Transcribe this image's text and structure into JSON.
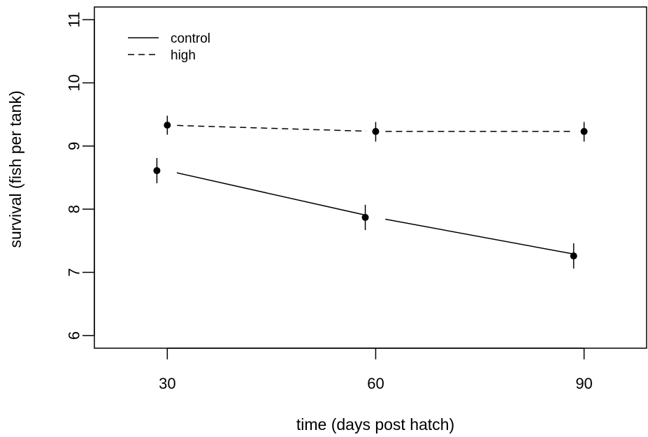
{
  "chart_data": {
    "type": "line",
    "title": "",
    "xlabel": "time (days post hatch)",
    "ylabel": "survival (fish per tank)",
    "xlim": [
      19.5,
      99
    ],
    "ylim": [
      5.8,
      11.2
    ],
    "x_ticks": [
      30,
      60,
      90
    ],
    "x_tick_labels": [
      "30",
      "60",
      "90"
    ],
    "y_ticks": [
      6,
      7,
      8,
      9,
      10,
      11
    ],
    "y_tick_labels": [
      "6",
      "7",
      "8",
      "9",
      "10",
      "11"
    ],
    "grid": false,
    "legend_position": "top-left",
    "series": [
      {
        "name": "control",
        "line_style": "solid",
        "x": [
          30,
          60,
          90
        ],
        "point_x": [
          28.5,
          58.5,
          88.5
        ],
        "y": [
          8.61,
          7.87,
          7.26
        ],
        "error_low": [
          8.41,
          7.67,
          7.06
        ],
        "error_high": [
          8.81,
          8.07,
          7.46
        ]
      },
      {
        "name": "high",
        "line_style": "dashed",
        "x": [
          30,
          60,
          90
        ],
        "point_x": [
          30,
          60,
          90
        ],
        "y": [
          9.33,
          9.23,
          9.23
        ],
        "error_low": [
          9.18,
          9.07,
          9.07
        ],
        "error_high": [
          9.48,
          9.38,
          9.38
        ]
      }
    ],
    "colors": {
      "line": "#000000",
      "background": "#ffffff"
    }
  }
}
